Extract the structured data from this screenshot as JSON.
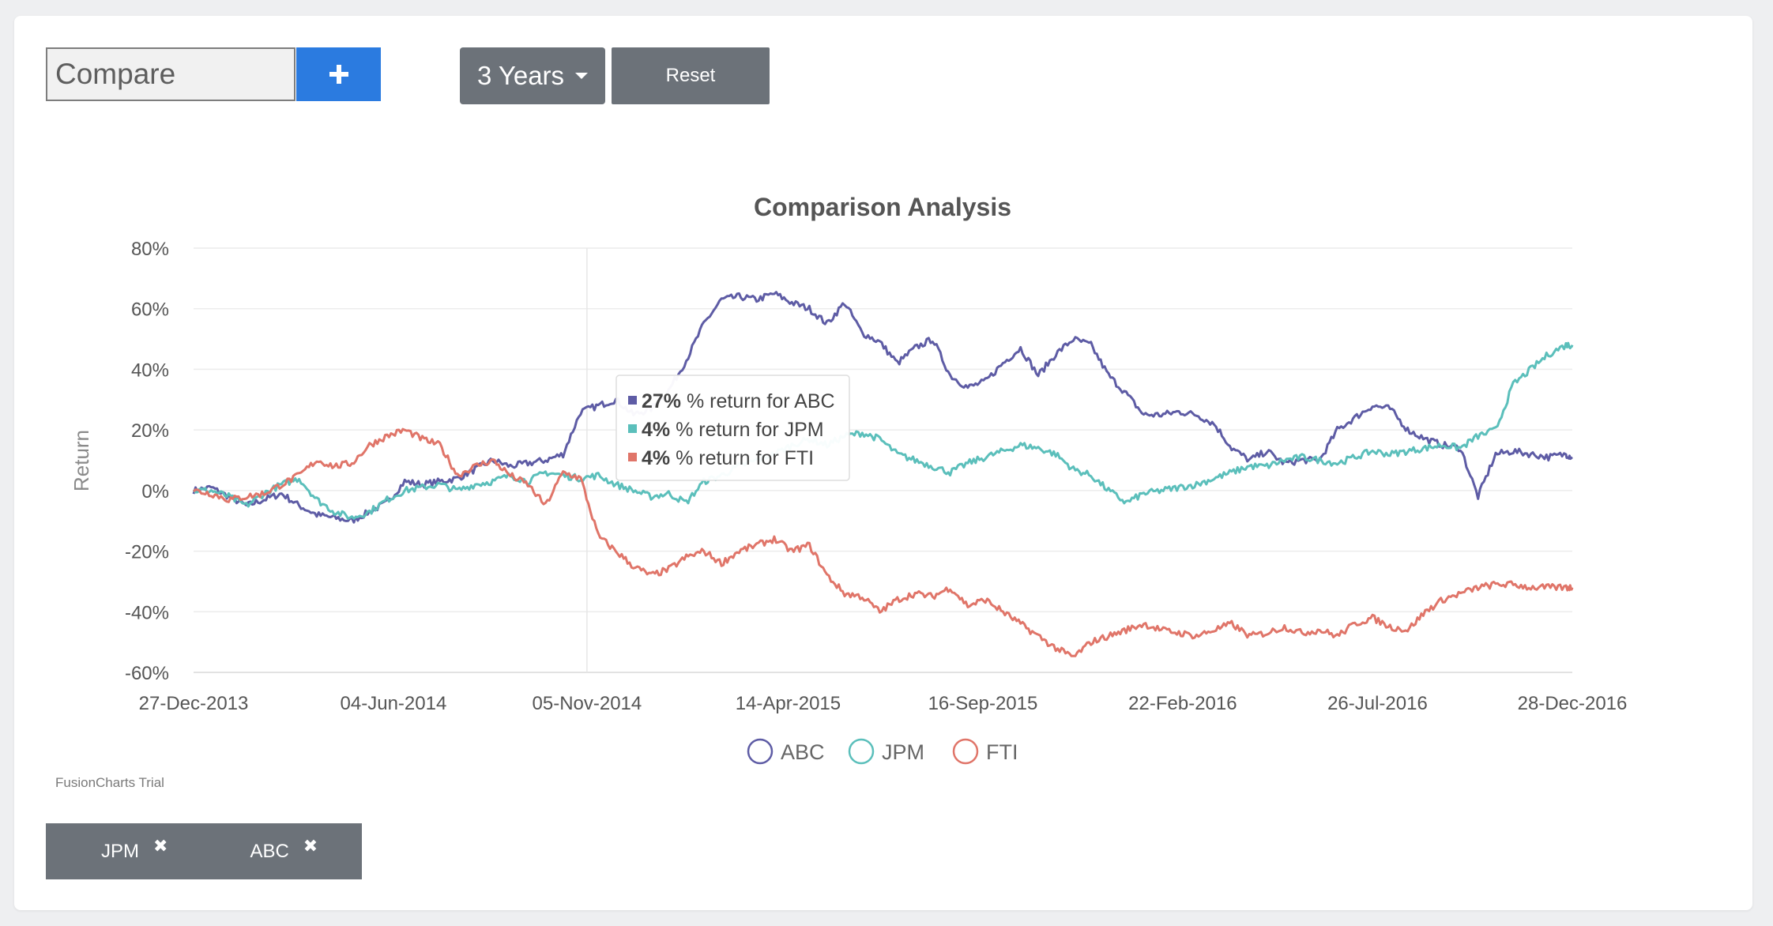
{
  "toolbar": {
    "compare_placeholder": "Compare",
    "add_icon": "plus-icon",
    "period_label": "3 Years",
    "reset_label": "Reset"
  },
  "colors": {
    "ABC": "#5e5ca5",
    "JPM": "#5bbfbb",
    "FTI": "#e07569",
    "accent": "#2b7be0",
    "button": "#6c7279"
  },
  "watermark": "FusionCharts Trial",
  "tags": [
    {
      "label": "JPM",
      "remove_icon": "close-icon"
    },
    {
      "label": "ABC",
      "remove_icon": "close-icon"
    }
  ],
  "chart_data": {
    "type": "line",
    "title": "Comparison Analysis",
    "xlabel": "",
    "ylabel": "Return",
    "x_ticks": [
      "27-Dec-2013",
      "04-Jun-2014",
      "05-Nov-2014",
      "14-Apr-2015",
      "16-Sep-2015",
      "22-Feb-2016",
      "26-Jul-2016",
      "28-Dec-2016"
    ],
    "y_ticks": [
      "80%",
      "60%",
      "40%",
      "20%",
      "0%",
      "-20%",
      "-40%",
      "-60%"
    ],
    "ylim": [
      -60,
      80
    ],
    "grid": true,
    "legend_position": "bottom",
    "hover_date": "05-Nov-2014",
    "tooltip": [
      {
        "series": "ABC",
        "value": "27%",
        "text": "% return for ABC"
      },
      {
        "series": "JPM",
        "value": "4%",
        "text": "% return for JPM"
      },
      {
        "series": "FTI",
        "value": "4%",
        "text": "% return for FTI"
      }
    ],
    "x": [
      "27-Dec-2013",
      "10-Jan-2014",
      "24-Jan-2014",
      "07-Feb-2014",
      "21-Feb-2014",
      "07-Mar-2014",
      "21-Mar-2014",
      "04-Apr-2014",
      "18-Apr-2014",
      "02-May-2014",
      "16-May-2014",
      "30-May-2014",
      "13-Jun-2014",
      "27-Jun-2014",
      "11-Jul-2014",
      "25-Jul-2014",
      "08-Aug-2014",
      "22-Aug-2014",
      "05-Sep-2014",
      "19-Sep-2014",
      "03-Oct-2014",
      "17-Oct-2014",
      "31-Oct-2014",
      "14-Nov-2014",
      "28-Nov-2014",
      "12-Dec-2014",
      "26-Dec-2014",
      "09-Jan-2015",
      "23-Jan-2015",
      "06-Feb-2015",
      "20-Feb-2015",
      "06-Mar-2015",
      "20-Mar-2015",
      "03-Apr-2015",
      "17-Apr-2015",
      "01-May-2015",
      "15-May-2015",
      "29-May-2015",
      "12-Jun-2015",
      "26-Jun-2015",
      "10-Jul-2015",
      "24-Jul-2015",
      "07-Aug-2015",
      "21-Aug-2015",
      "04-Sep-2015",
      "18-Sep-2015",
      "02-Oct-2015",
      "16-Oct-2015",
      "30-Oct-2015",
      "13-Nov-2015",
      "27-Nov-2015",
      "11-Dec-2015",
      "25-Dec-2015",
      "08-Jan-2016",
      "22-Jan-2016",
      "05-Feb-2016",
      "19-Feb-2016",
      "04-Mar-2016",
      "18-Mar-2016",
      "01-Apr-2016",
      "15-Apr-2016",
      "29-Apr-2016",
      "13-May-2016",
      "27-May-2016",
      "10-Jun-2016",
      "24-Jun-2016",
      "08-Jul-2016",
      "22-Jul-2016",
      "05-Aug-2016",
      "19-Aug-2016",
      "02-Sep-2016",
      "16-Sep-2016",
      "30-Sep-2016",
      "14-Oct-2016",
      "28-Oct-2016",
      "11-Nov-2016",
      "25-Nov-2016",
      "09-Dec-2016",
      "23-Dec-2016",
      "28-Dec-2016"
    ],
    "series": [
      {
        "name": "ABC",
        "values": [
          0,
          1,
          -2,
          -5,
          -3,
          -1,
          -5,
          -8,
          -9,
          -10,
          -7,
          -4,
          3,
          2,
          3,
          4,
          7,
          10,
          8,
          9,
          10,
          12,
          26,
          28,
          30,
          25,
          27,
          33,
          43,
          55,
          63,
          64,
          63,
          65,
          62,
          60,
          55,
          62,
          52,
          49,
          42,
          47,
          50,
          38,
          34,
          36,
          42,
          47,
          38,
          45,
          50,
          48,
          38,
          32,
          25,
          25,
          26,
          25,
          22,
          14,
          10,
          13,
          9,
          10,
          10,
          20,
          24,
          28,
          27,
          20,
          17,
          15,
          14,
          -2,
          12,
          13,
          12,
          11,
          12,
          11
        ]
      },
      {
        "name": "JPM",
        "values": [
          0,
          0,
          -2,
          -5,
          -1,
          2,
          4,
          -3,
          -7,
          -9,
          -7,
          -3,
          0,
          1,
          2,
          0,
          2,
          3,
          5,
          3,
          6,
          5,
          4,
          5,
          2,
          0,
          -2,
          -1,
          -4,
          3,
          5,
          8,
          10,
          12,
          15,
          17,
          15,
          18,
          19,
          17,
          12,
          10,
          8,
          6,
          9,
          11,
          13,
          15,
          14,
          12,
          7,
          5,
          0,
          -4,
          -1,
          0,
          1,
          2,
          4,
          6,
          8,
          8,
          10,
          11,
          10,
          9,
          11,
          13,
          12,
          13,
          14,
          15,
          14,
          18,
          20,
          35,
          40,
          45,
          48,
          48
        ]
      },
      {
        "name": "FTI",
        "values": [
          0,
          -1,
          -3,
          -2,
          -1,
          2,
          5,
          10,
          8,
          9,
          15,
          18,
          20,
          17,
          15,
          5,
          8,
          10,
          5,
          2,
          -5,
          6,
          4,
          -15,
          -20,
          -25,
          -28,
          -26,
          -22,
          -20,
          -24,
          -20,
          -18,
          -16,
          -20,
          -18,
          -28,
          -34,
          -35,
          -40,
          -36,
          -34,
          -35,
          -32,
          -38,
          -36,
          -40,
          -44,
          -48,
          -52,
          -55,
          -50,
          -48,
          -46,
          -44,
          -46,
          -47,
          -48,
          -46,
          -44,
          -48,
          -47,
          -45,
          -47,
          -46,
          -48,
          -44,
          -42,
          -45,
          -46,
          -40,
          -36,
          -34,
          -32,
          -31,
          -31,
          -32,
          -32,
          -32,
          -32
        ]
      }
    ]
  }
}
